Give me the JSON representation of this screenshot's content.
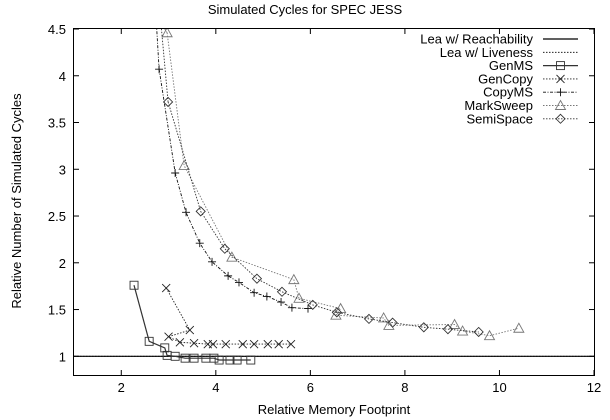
{
  "chart_data": {
    "type": "line",
    "title": "Simulated Cycles for SPEC JESS",
    "xlabel": "Relative Memory Footprint",
    "ylabel": "Relative Number of Simulated Cycles",
    "xlim": [
      1,
      12
    ],
    "ylim": [
      0.8,
      4.5
    ],
    "xticks": [
      2,
      4,
      6,
      8,
      10,
      12
    ],
    "yticks": [
      1,
      1.5,
      2,
      2.5,
      3,
      3.5,
      4,
      4.5
    ],
    "grid": false,
    "legend_position": "top-right",
    "series": [
      {
        "name": "Lea w/ Reachability",
        "marker": "none",
        "line": "solid",
        "color": "#000000",
        "x": [
          1,
          12
        ],
        "y": [
          1,
          1
        ]
      },
      {
        "name": "Lea w/ Liveness",
        "marker": "none",
        "line": "dotted",
        "color": "#000000",
        "x": [
          1,
          12
        ],
        "y": [
          1,
          1
        ]
      },
      {
        "name": "GenMS",
        "marker": "square",
        "line": "solid",
        "color": "#333333",
        "x": [
          2.27,
          2.59,
          2.92,
          2.97,
          3.14,
          3.35,
          3.54,
          3.79,
          3.96,
          4.07,
          4.3,
          4.45,
          4.74
        ],
        "y": [
          1.76,
          1.16,
          1.09,
          1.01,
          1.0,
          0.98,
          0.98,
          0.98,
          0.98,
          0.96,
          0.96,
          0.96,
          0.96
        ]
      },
      {
        "name": "GenCopy",
        "marker": "x",
        "line": "dotted",
        "color": "#222222",
        "x": [
          2.95,
          3.45,
          3.0,
          3.24,
          3.54,
          3.83,
          3.94,
          4.21,
          4.57,
          4.81,
          5.1,
          5.33,
          5.59
        ],
        "y": [
          1.73,
          1.28,
          1.21,
          1.15,
          1.14,
          1.13,
          1.13,
          1.13,
          1.13,
          1.13,
          1.13,
          1.13,
          1.13
        ]
      },
      {
        "name": "CopyMS",
        "marker": "plus",
        "line": "dashdot",
        "color": "#111111",
        "x": [
          2.8,
          3.14,
          3.37,
          3.66,
          3.92,
          4.26,
          4.49,
          4.81,
          5.08,
          5.38,
          5.61,
          5.95
        ],
        "y": [
          4.07,
          2.96,
          2.54,
          2.21,
          2.01,
          1.86,
          1.79,
          1.68,
          1.64,
          1.58,
          1.52,
          1.51
        ]
      },
      {
        "name": "MarkSweep",
        "marker": "triangle",
        "line": "dotted",
        "color": "#777777",
        "x": [
          2.97,
          3.33,
          4.34,
          5.65,
          5.76,
          6.64,
          6.54,
          7.55,
          7.66,
          9.05,
          9.22,
          9.79,
          10.41
        ],
        "y": [
          4.46,
          3.04,
          2.06,
          1.82,
          1.62,
          1.51,
          1.44,
          1.41,
          1.33,
          1.34,
          1.27,
          1.22,
          1.3
        ]
      },
      {
        "name": "SemiSpace",
        "marker": "diamond",
        "line": "dotted",
        "color": "#333333",
        "x": [
          2.99,
          3.68,
          4.19,
          4.87,
          5.4,
          6.05,
          6.56,
          7.24,
          7.74,
          8.4,
          8.91,
          9.56
        ],
        "y": [
          3.72,
          2.55,
          2.15,
          1.83,
          1.69,
          1.55,
          1.47,
          1.4,
          1.36,
          1.31,
          1.29,
          1.26
        ]
      }
    ]
  }
}
